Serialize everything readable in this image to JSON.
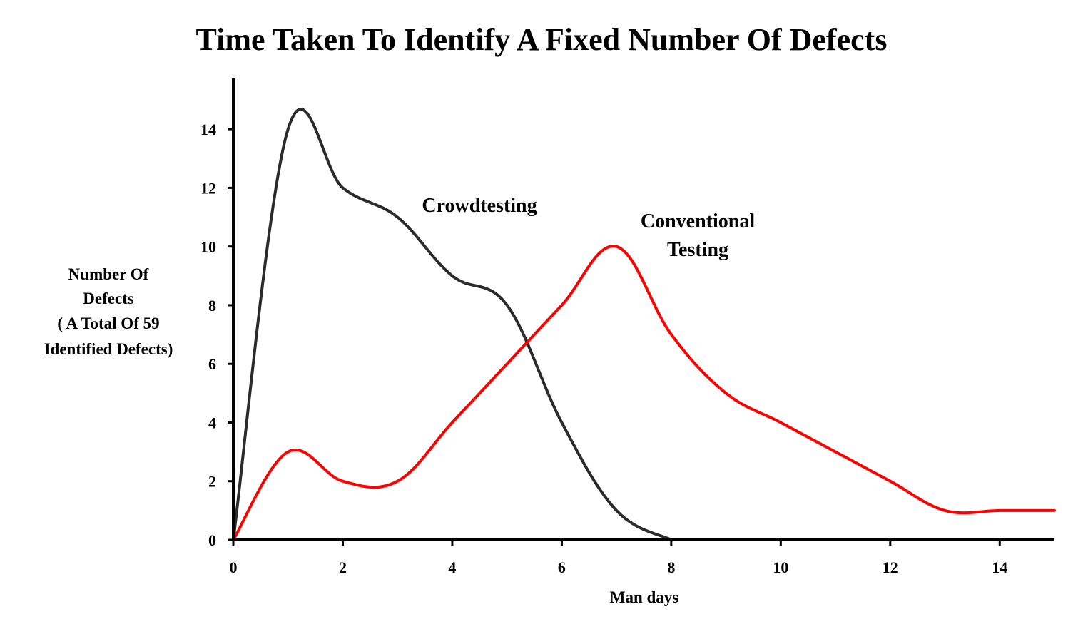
{
  "chart_data": {
    "type": "line",
    "title": "Time Taken To Identify A Fixed Number Of  Defects",
    "xlabel": "Man days",
    "ylabel_lines": [
      "Number Of",
      "Defects",
      "( A Total Of  59",
      "Identified Defects)"
    ],
    "xlim": [
      0,
      15
    ],
    "ylim": [
      0,
      15
    ],
    "x_ticks": [
      0,
      2,
      4,
      6,
      8,
      10,
      12,
      14
    ],
    "y_ticks": [
      0,
      2,
      4,
      6,
      8,
      10,
      12,
      14
    ],
    "grid": false,
    "legend": "none",
    "series": [
      {
        "name": "Crowdtesting",
        "label_lines": [
          "Crowdtesting"
        ],
        "color": "#2b2b2b",
        "points": [
          [
            0,
            0
          ],
          [
            1,
            14
          ],
          [
            2,
            12
          ],
          [
            3,
            11
          ],
          [
            4,
            9
          ],
          [
            5,
            8
          ],
          [
            6,
            4
          ],
          [
            7,
            1
          ],
          [
            8,
            0
          ]
        ]
      },
      {
        "name": "Conventional Testing",
        "label_lines": [
          "Conventional",
          "Testing"
        ],
        "color": "#ff0000",
        "points": [
          [
            0,
            0
          ],
          [
            1,
            3
          ],
          [
            2,
            2
          ],
          [
            3,
            2
          ],
          [
            4,
            4
          ],
          [
            5,
            6
          ],
          [
            6,
            8
          ],
          [
            7,
            10
          ],
          [
            8,
            7
          ],
          [
            9,
            5
          ],
          [
            10,
            4
          ],
          [
            11,
            3
          ],
          [
            12,
            2
          ],
          [
            13,
            1
          ],
          [
            14,
            1
          ],
          [
            15,
            1
          ]
        ]
      }
    ]
  }
}
